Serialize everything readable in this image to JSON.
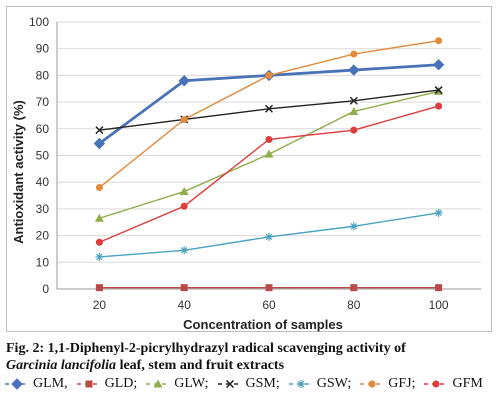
{
  "chart_data": {
    "type": "line",
    "x": [
      20,
      40,
      60,
      80,
      100
    ],
    "xlabel": "Concentration of samples",
    "ylabel": "Antioxidant activity (%)",
    "ylim": [
      0,
      100
    ],
    "yticks": [
      0,
      10,
      20,
      30,
      40,
      50,
      60,
      70,
      80,
      90,
      100
    ],
    "grid": "horizontal",
    "legend": "bottom",
    "series": [
      {
        "name": "GLM",
        "color": "#4a72b8",
        "marker": "diamond",
        "values": [
          54.5,
          78,
          80,
          82,
          84
        ]
      },
      {
        "name": "GLD",
        "color": "#b94a48",
        "marker": "square",
        "values": [
          0.5,
          0.5,
          0.5,
          0.5,
          0.5
        ]
      },
      {
        "name": "GLW",
        "color": "#8fae4a",
        "marker": "triangle",
        "values": [
          26.5,
          36.5,
          50.5,
          66.5,
          74
        ]
      },
      {
        "name": "GSM",
        "color": "#222222",
        "marker": "x",
        "values": [
          59.5,
          63.5,
          67.5,
          70.5,
          74.5
        ]
      },
      {
        "name": "GSW",
        "color": "#4aa3c0",
        "marker": "star",
        "values": [
          12,
          14.5,
          19.5,
          23.5,
          28.5
        ]
      },
      {
        "name": "GFJ",
        "color": "#e48a3c",
        "marker": "circle",
        "values": [
          38,
          63.5,
          80,
          88,
          93
        ]
      },
      {
        "name": "GFM",
        "color": "#e03c3c",
        "marker": "circle",
        "values": [
          17.5,
          31,
          56,
          59.5,
          68.5
        ]
      }
    ]
  },
  "caption": {
    "part1": "Fig. 2: 1,1-Diphenyl-2-picrylhydrazyl radical scavenging activity of",
    "species": "Garcinia lancifolia",
    "part2": " leaf, stem and fruit extracts"
  },
  "legend_labels": [
    "GLM,",
    "GLD;",
    "GLW;",
    "GSM;",
    "GSW;",
    "GFJ;",
    "GFM"
  ]
}
